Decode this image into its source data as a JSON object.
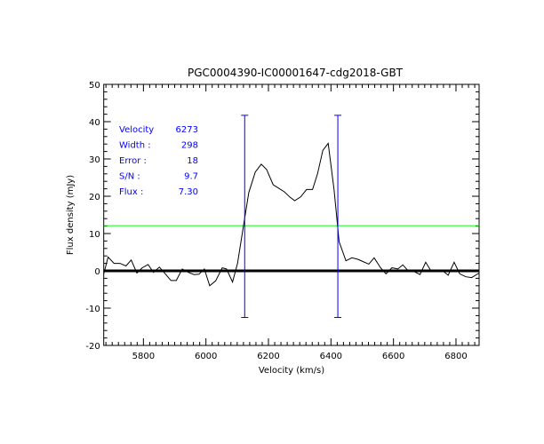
{
  "chart_data": {
    "type": "line",
    "title": "PGC0004390-IC00001647-cdg2018-GBT",
    "xlabel": "Velocity (km/s)",
    "ylabel": "Flux density (mJy)",
    "xlim": [
      5673,
      6874
    ],
    "ylim": [
      -20,
      50
    ],
    "xticks": [
      5800,
      6000,
      6200,
      6400,
      6600,
      6800
    ],
    "yticks": [
      -20,
      -10,
      0,
      10,
      20,
      30,
      40,
      50
    ],
    "ytick_labels": [
      "-20",
      "-10",
      "0",
      "10",
      "20",
      "30",
      "40",
      "50"
    ],
    "grid": false,
    "series": [
      {
        "color": "#000000",
        "x": [
          5673,
          5687,
          5706,
          5725,
          5744,
          5761,
          5779,
          5796,
          5815,
          5832,
          5851,
          5870,
          5888,
          5905,
          5924,
          5946,
          5962,
          5978,
          5995,
          6012,
          6031,
          6052,
          6066,
          6085,
          6101,
          6118,
          6137,
          6158,
          6177,
          6194,
          6215,
          6232,
          6251,
          6268,
          6284,
          6303,
          6322,
          6341,
          6357,
          6374,
          6391,
          6410,
          6426,
          6448,
          6467,
          6486,
          6502,
          6521,
          6538,
          6559,
          6576,
          6595,
          6614,
          6630,
          6649,
          6666,
          6685,
          6703,
          6720,
          6739,
          6758,
          6775,
          6794,
          6812,
          6832,
          6850,
          6874
        ],
        "y": [
          -0.8,
          3.7,
          2,
          2,
          1.3,
          2.9,
          -0.6,
          0.8,
          1.7,
          -0.4,
          1,
          -0.8,
          -2.6,
          -2.6,
          0.5,
          -0.5,
          -1,
          -0.9,
          0.5,
          -4,
          -2.7,
          0.8,
          0.5,
          -3,
          2,
          11,
          21,
          26.5,
          28.6,
          27.2,
          23.1,
          22.2,
          21.2,
          19.8,
          18.8,
          19.8,
          21.8,
          21.8,
          26,
          32.3,
          34.2,
          21.8,
          7.8,
          2.7,
          3.5,
          3.1,
          2.5,
          1.8,
          3.5,
          0.8,
          -0.8,
          0.8,
          0.5,
          1.6,
          -0.2,
          -0.2,
          -1,
          2.3,
          0,
          0.2,
          0,
          -1.2,
          2.3,
          -0.8,
          -1.6,
          -1.8,
          -0.6
        ]
      }
    ],
    "baseline": {
      "y": 0,
      "color": "#000000"
    },
    "threshold_line": {
      "y": 12.1,
      "color": "#00ff00"
    },
    "velocity_markers": {
      "x": [
        6124,
        6422
      ],
      "y_range": [
        -12.5,
        41.7
      ],
      "color": "#0000ff"
    },
    "annotations": [
      {
        "label": "Velocity",
        "value": "6273"
      },
      {
        "label": "Width :",
        "value": "298"
      },
      {
        "label": "Error :",
        "value": "18"
      },
      {
        "label": "S/N :",
        "value": "9.7"
      },
      {
        "label": "Flux :",
        "value": "7.30"
      }
    ],
    "annotation_color": "#0000ff"
  }
}
